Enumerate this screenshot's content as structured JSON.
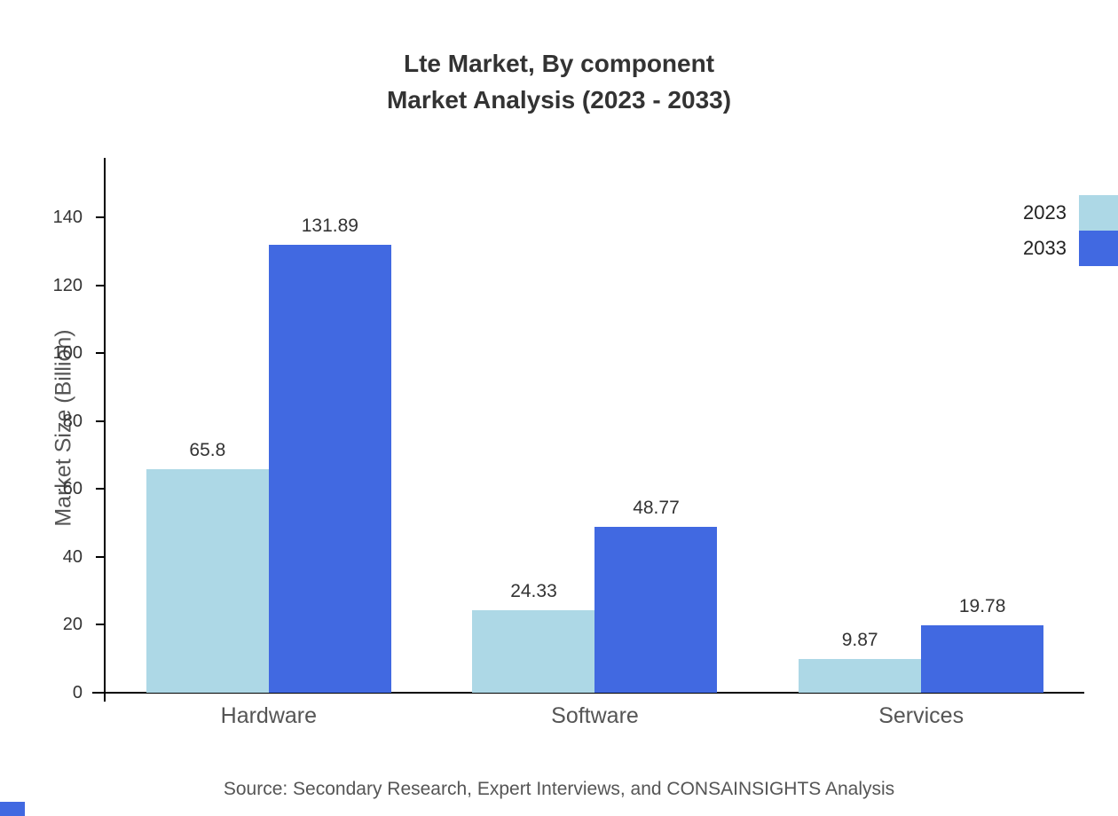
{
  "title": {
    "line1": "Lte Market, By component",
    "line2": "Market Analysis (2023 - 2033)"
  },
  "source": "Source: Secondary Research, Expert Interviews, and CONSAINSIGHTS Analysis",
  "chart_data": {
    "type": "bar",
    "title": "Lte Market, By component — Market Analysis (2023 - 2033)",
    "categories": [
      "Hardware",
      "Software",
      "Services"
    ],
    "series": [
      {
        "name": "2023",
        "color": "#ADD8E6",
        "values": [
          65.8,
          24.33,
          9.87
        ]
      },
      {
        "name": "2033",
        "color": "#4169E1",
        "values": [
          131.89,
          48.77,
          19.78
        ]
      }
    ],
    "xlabel": "",
    "ylabel": "Market Size (Billion)",
    "ylim": [
      0,
      157
    ],
    "yticks": [
      0,
      20,
      40,
      60,
      80,
      100,
      120,
      140
    ],
    "legend_position": "top-right",
    "grid": false
  },
  "colors": {
    "axis": "#000000",
    "title_text": "#333333",
    "muted_text": "#555555"
  }
}
